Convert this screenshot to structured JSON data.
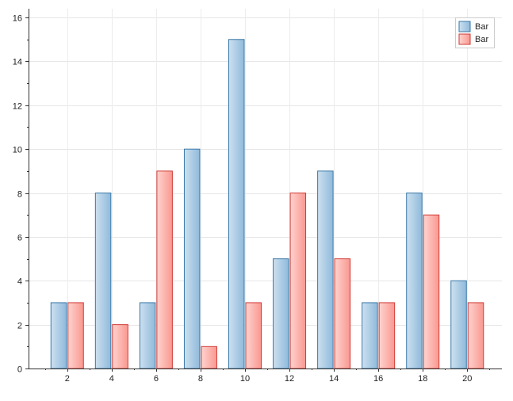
{
  "chart_data": {
    "type": "bar",
    "x": [
      2,
      4,
      6,
      8,
      10,
      12,
      14,
      16,
      18,
      20
    ],
    "x_tick_labels": [
      "2",
      "4",
      "6",
      "8",
      "10",
      "12",
      "14",
      "16",
      "18",
      "20"
    ],
    "ylim": [
      0,
      16.4
    ],
    "y_ticks": [
      0,
      2,
      4,
      6,
      8,
      10,
      12,
      14,
      16
    ],
    "y_tick_labels": [
      "0",
      "2",
      "4",
      "6",
      "8",
      "10",
      "12",
      "14",
      "16"
    ],
    "grid": true,
    "legend_position": "top-right",
    "series": [
      {
        "name": "Bar",
        "values": [
          3,
          8,
          3,
          10,
          15,
          5,
          9,
          3,
          8,
          4
        ],
        "color": "#4a89b8",
        "fill_top": "#cde0ef",
        "fill_bottom": "#8fbadb",
        "stroke": "#3a78a8"
      },
      {
        "name": "Bar",
        "values": [
          3,
          2,
          9,
          1,
          3,
          8,
          5,
          3,
          7,
          3
        ],
        "color": "#e05a55",
        "fill_top": "#ffd3cf",
        "fill_bottom": "#f99890",
        "stroke": "#cf3b35"
      }
    ]
  }
}
